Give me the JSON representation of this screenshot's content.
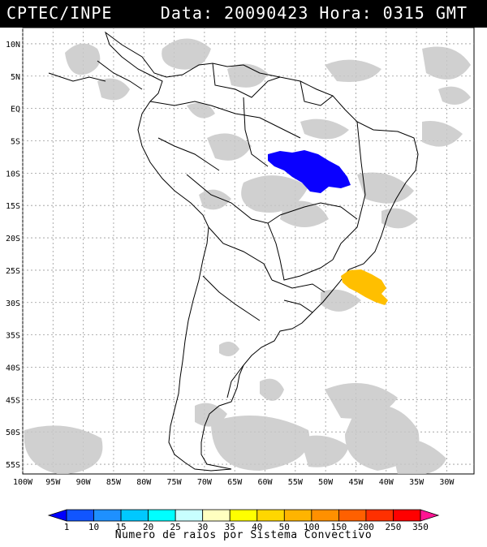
{
  "header": {
    "source": "CPTEC/INPE",
    "datetime": "Data: 20090423 Hora: 0315 GMT"
  },
  "map": {
    "lat_labels": [
      "10N",
      "5N",
      "EQ",
      "5S",
      "10S",
      "15S",
      "20S",
      "25S",
      "30S",
      "35S",
      "40S",
      "45S",
      "50S",
      "55S"
    ],
    "lon_labels": [
      "100W",
      "95W",
      "90W",
      "85W",
      "80W",
      "75W",
      "70W",
      "65W",
      "60W",
      "55W",
      "50W",
      "45W",
      "40W",
      "35W",
      "30W"
    ],
    "clusters": [
      {
        "name": "amazonia-cluster",
        "category": "1-10",
        "color": "#0a00ff",
        "lat_center": -9.0,
        "lon_center": -53.0
      },
      {
        "name": "south-brazil-cluster",
        "category": "50-100",
        "color": "#ffbf00",
        "lat_center": -27.0,
        "lon_center": -44.0
      }
    ]
  },
  "legend": {
    "ticks": [
      "1",
      "10",
      "15",
      "20",
      "25",
      "30",
      "35",
      "40",
      "50",
      "100",
      "150",
      "200",
      "250",
      "350"
    ],
    "colors": [
      "#0000ff",
      "#1155ff",
      "#1e90ff",
      "#00c8ff",
      "#00ffff",
      "#c8ffff",
      "#ffffc0",
      "#ffff00",
      "#ffd700",
      "#ffb400",
      "#ff9000",
      "#ff6000",
      "#ff3000",
      "#ff0000",
      "#ff1493"
    ],
    "title": "Numero de raios por Sistema Convectivo"
  }
}
